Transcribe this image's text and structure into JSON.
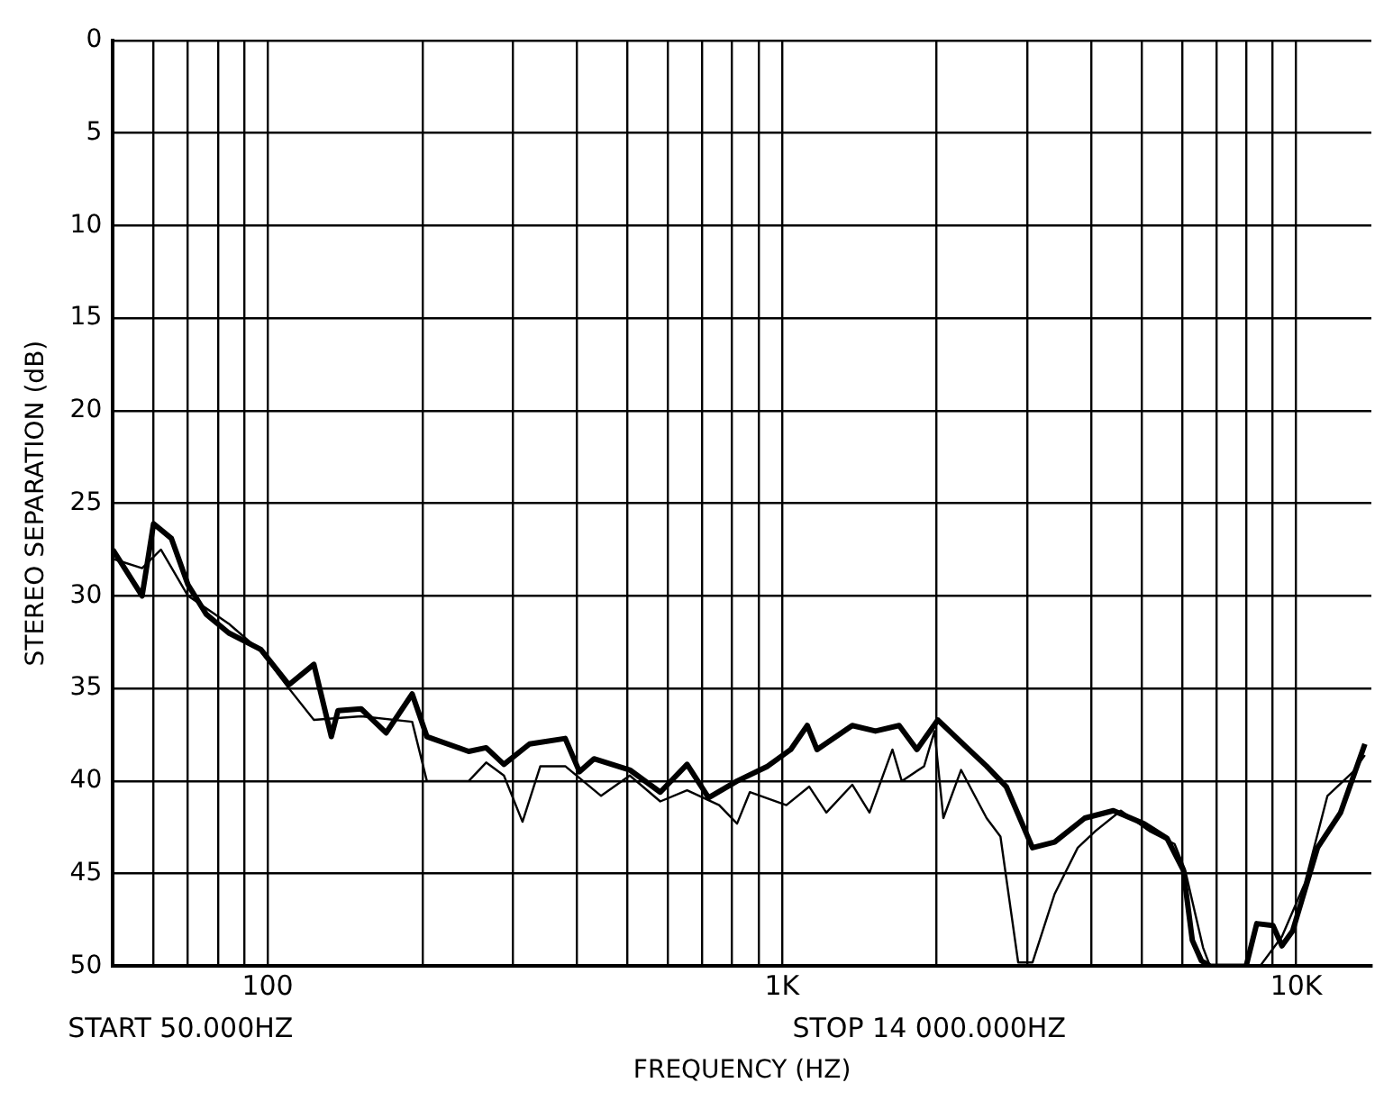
{
  "chart_data": {
    "type": "line",
    "xlabel": "FREQUENCY (HZ)",
    "ylabel": "STEREO SEPARATION (dB)",
    "annotations": [
      "START 50.000HZ",
      "STOP 14 000.000HZ"
    ],
    "log": "x",
    "grid": true,
    "legend": false,
    "marker": "none",
    "line_style": "solid",
    "xlim": [
      50,
      14000
    ],
    "ylim": [
      50,
      0
    ],
    "xticks": [
      {
        "value": 60,
        "label": null
      },
      {
        "value": 70,
        "label": null
      },
      {
        "value": 80,
        "label": null
      },
      {
        "value": 90,
        "label": null
      },
      {
        "value": 100,
        "label": "100"
      },
      {
        "value": 200,
        "label": null
      },
      {
        "value": 300,
        "label": null
      },
      {
        "value": 400,
        "label": null
      },
      {
        "value": 500,
        "label": null
      },
      {
        "value": 600,
        "label": null
      },
      {
        "value": 700,
        "label": null
      },
      {
        "value": 800,
        "label": null
      },
      {
        "value": 900,
        "label": null
      },
      {
        "value": 1000,
        "label": "1K"
      },
      {
        "value": 2000,
        "label": null
      },
      {
        "value": 3000,
        "label": null
      },
      {
        "value": 4000,
        "label": null
      },
      {
        "value": 5000,
        "label": null
      },
      {
        "value": 6000,
        "label": null
      },
      {
        "value": 7000,
        "label": null
      },
      {
        "value": 8000,
        "label": null
      },
      {
        "value": 9000,
        "label": null
      },
      {
        "value": 10000,
        "label": "10K"
      }
    ],
    "yticks": [
      0,
      5,
      10,
      15,
      20,
      25,
      30,
      35,
      40,
      45,
      50
    ],
    "series": [
      {
        "color": "#000000",
        "x": [
          50,
          57,
          60,
          65,
          70,
          76,
          84,
          97,
          110,
          123,
          133,
          137,
          152,
          170,
          191,
          204,
          246,
          266,
          288,
          323,
          379,
          404,
          431,
          506,
          580,
          654,
          720,
          818,
          938,
          1040,
          1120,
          1170,
          1370,
          1520,
          1690,
          1830,
          2010,
          2270,
          2500,
          2730,
          3070,
          3390,
          3880,
          4410,
          5060,
          5610,
          6030,
          6280,
          6540,
          6800,
          7990,
          8380,
          9010,
          9380,
          9840,
          11000,
          12200,
          13600
        ],
        "values": [
          27.5,
          30,
          26.1,
          26.9,
          29.4,
          31,
          32,
          32.9,
          34.8,
          33.7,
          37.6,
          36.2,
          36.1,
          37.4,
          35.3,
          37.6,
          38.4,
          38.2,
          39.1,
          38,
          37.7,
          39.5,
          38.8,
          39.4,
          40.6,
          39.1,
          40.9,
          40,
          39.2,
          38.3,
          37,
          38.3,
          37,
          37.3,
          37,
          38.3,
          36.7,
          38.1,
          39.2,
          40.3,
          43.6,
          43.3,
          42,
          41.6,
          42.3,
          43.1,
          44.8,
          48.6,
          49.7,
          50,
          50,
          47.7,
          47.8,
          48.9,
          48.1,
          43.6,
          41.7,
          38
        ]
      },
      {
        "color": "#000000",
        "x": [
          50,
          57,
          62,
          70,
          84,
          97,
          110,
          123,
          152,
          191,
          204,
          246,
          266,
          288,
          313,
          339,
          379,
          445,
          506,
          580,
          654,
          755,
          818,
          866,
          1020,
          1130,
          1220,
          1370,
          1480,
          1640,
          1710,
          1890,
          1980,
          2060,
          2230,
          2500,
          2660,
          2880,
          3070,
          3390,
          3760,
          4070,
          4560,
          5180,
          5800,
          6080,
          6590,
          6800,
          8500,
          9380,
          10400,
          11500,
          12900,
          13600
        ],
        "values": [
          28,
          28.5,
          27.5,
          30,
          31.5,
          33,
          35,
          36.7,
          36.5,
          36.8,
          40,
          40,
          39,
          39.7,
          42.2,
          39.2,
          39.2,
          40.8,
          39.7,
          41.1,
          40.5,
          41.3,
          42.3,
          40.6,
          41.3,
          40.3,
          41.7,
          40.2,
          41.7,
          38.3,
          40,
          39.2,
          37.3,
          42,
          39.4,
          42,
          43,
          49.8,
          49.8,
          46.1,
          43.6,
          42.7,
          41.6,
          42.7,
          43.4,
          44.8,
          49,
          50,
          50,
          48.4,
          45.5,
          40.8,
          39.5,
          38.6
        ]
      }
    ]
  }
}
